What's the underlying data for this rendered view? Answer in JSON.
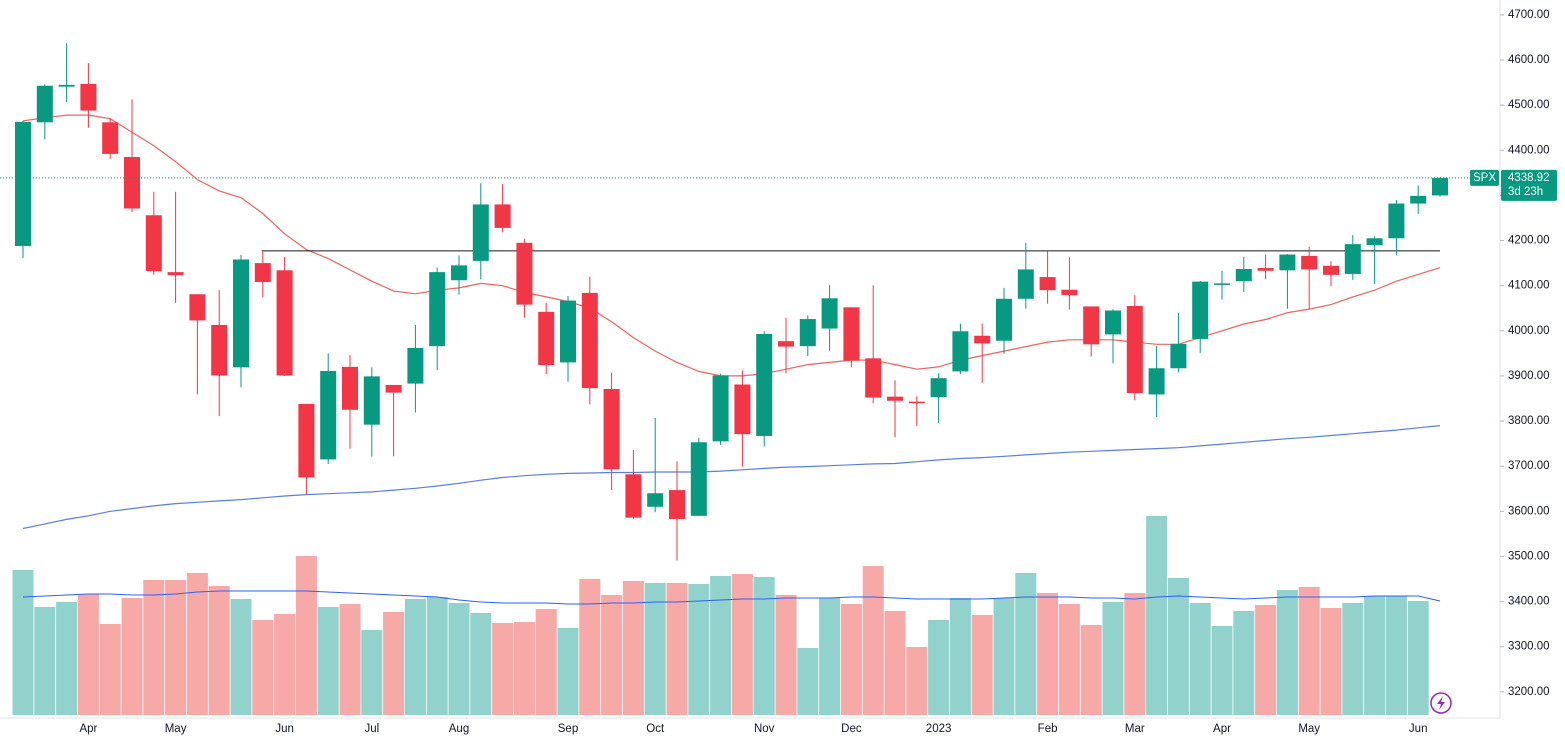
{
  "chart_data": {
    "type": "candlestick",
    "symbol": "SPX",
    "countdown": "3d 23h",
    "categories": [
      null,
      null,
      null,
      "Apr",
      null,
      null,
      null,
      "May",
      null,
      null,
      null,
      null,
      "Jun",
      null,
      null,
      null,
      "Jul",
      null,
      null,
      null,
      "Aug",
      null,
      null,
      null,
      null,
      "Sep",
      null,
      null,
      null,
      "Oct",
      null,
      null,
      null,
      null,
      "Nov",
      null,
      null,
      null,
      "Dec",
      null,
      null,
      null,
      "2023",
      null,
      null,
      null,
      null,
      "Feb",
      null,
      null,
      null,
      "Mar",
      null,
      null,
      null,
      "Apr",
      null,
      null,
      null,
      "May",
      null,
      null,
      null,
      null,
      "Jun",
      null
    ],
    "open": [
      4188,
      4462,
      4541,
      4547,
      4462,
      4385,
      4256,
      4130,
      4081,
      4013,
      3919,
      4150,
      4134,
      3838,
      3715,
      3920,
      3792,
      3880,
      3883,
      3966,
      4112,
      4155,
      4280,
      4195,
      4042,
      3930,
      4084,
      3871,
      3682,
      3610,
      3647,
      3590,
      3755,
      3881,
      3767,
      3977,
      3966,
      4005,
      4052,
      3939,
      3854,
      3843,
      3853,
      3910,
      3989,
      3978,
      4071,
      4119,
      4091,
      4054,
      3992,
      4055,
      3859,
      3917,
      3982,
      4102,
      4110,
      4139,
      4134,
      4166,
      4144,
      4126,
      4190,
      4205,
      4282,
      4300
    ],
    "high": [
      4465,
      4546,
      4637,
      4593,
      4471,
      4513,
      4308,
      4308,
      4081,
      4090,
      4168,
      4177,
      4164,
      3838,
      3950,
      3946,
      3919,
      3880,
      4013,
      4140,
      4167,
      4327,
      4325,
      4204,
      4062,
      4077,
      4120,
      3907,
      3736,
      3807,
      3711,
      3763,
      3905,
      3912,
      3999,
      4029,
      4034,
      4101,
      4052,
      4101,
      3890,
      3855,
      3906,
      4016,
      4016,
      4095,
      4195,
      4176,
      4163,
      4054,
      4048,
      4079,
      3966,
      4040,
      4110,
      4133,
      4164,
      4169,
      4170,
      4186,
      4154,
      4212,
      4209,
      4290,
      4322,
      4339
    ],
    "low": [
      4161,
      4424,
      4507,
      4450,
      4381,
      4263,
      4124,
      4062,
      3859,
      3811,
      3875,
      4074,
      3900,
      3637,
      3705,
      3739,
      3721,
      3722,
      3819,
      3913,
      4080,
      4114,
      4218,
      4029,
      3904,
      3887,
      3837,
      3647,
      3584,
      3598,
      3491,
      3590,
      3747,
      3699,
      3744,
      3906,
      3944,
      3956,
      3919,
      3839,
      3764,
      3789,
      3795,
      3904,
      3885,
      3949,
      4049,
      4060,
      4047,
      3943,
      3928,
      3846,
      3809,
      3908,
      3951,
      4069,
      4086,
      4114,
      4049,
      4048,
      4099,
      4113,
      4104,
      4167,
      4259,
      4297
    ],
    "close": [
      4463,
      4543,
      4545,
      4488,
      4392,
      4271,
      4132,
      4123,
      4023,
      3901,
      4158,
      4108,
      3901,
      3675,
      3911,
      3825,
      3899,
      3863,
      3962,
      4130,
      4145,
      4280,
      4228,
      4058,
      3924,
      4067,
      3873,
      3693,
      3586,
      3640,
      3583,
      3753,
      3901,
      3771,
      3993,
      3965,
      4026,
      4072,
      3934,
      3852,
      3845,
      3840,
      3895,
      3999,
      3972,
      4071,
      4136,
      4090,
      4079,
      3970,
      4045,
      3862,
      3917,
      3971,
      4109,
      4105,
      4137,
      4133,
      4169,
      4136,
      4124,
      4192,
      4205,
      4282,
      4299,
      4338.92
    ],
    "volume": [
      14.5,
      10.8,
      11.3,
      12.1,
      9.1,
      11.7,
      13.5,
      13.5,
      14.2,
      12.9,
      11.6,
      9.5,
      10.1,
      15.9,
      10.8,
      11.1,
      8.5,
      10.3,
      11.6,
      11.8,
      11.2,
      10.2,
      9.2,
      9.3,
      10.6,
      8.7,
      13.6,
      12.0,
      13.4,
      13.2,
      13.2,
      13.1,
      13.9,
      14.1,
      13.8,
      12.0,
      6.7,
      11.7,
      11.1,
      14.9,
      10.4,
      6.8,
      9.5,
      11.7,
      10.0,
      11.7,
      14.2,
      12.2,
      11.1,
      9.0,
      11.3,
      12.2,
      19.9,
      13.7,
      11.2,
      8.9,
      10.4,
      11.0,
      12.5,
      12.8,
      10.7,
      11.2,
      11.9,
      11.9,
      11.4,
      null
    ],
    "ma_fast": [
      4465,
      4472,
      4478,
      4478,
      4470,
      4440,
      4410,
      4375,
      4335,
      4310,
      4295,
      4260,
      4215,
      4180,
      4160,
      4135,
      4110,
      4088,
      4082,
      4090,
      4095,
      4105,
      4100,
      4085,
      4075,
      4065,
      4050,
      4020,
      3985,
      3955,
      3930,
      3910,
      3900,
      3900,
      3905,
      3915,
      3925,
      3930,
      3935,
      3935,
      3925,
      3915,
      3920,
      3935,
      3945,
      3955,
      3965,
      3975,
      3980,
      3980,
      3980,
      3975,
      3970,
      3970,
      3985,
      4000,
      4015,
      4025,
      4040,
      4048,
      4058,
      4075,
      4090,
      4110,
      4125,
      4140
    ],
    "ma_slow": [
      3562,
      3572,
      3582,
      3590,
      3600,
      3606,
      3612,
      3617,
      3620,
      3623,
      3626,
      3630,
      3634,
      3637,
      3639,
      3641,
      3643,
      3647,
      3651,
      3656,
      3662,
      3669,
      3675,
      3679,
      3682,
      3684,
      3685,
      3686,
      3686,
      3687,
      3687,
      3687,
      3689,
      3692,
      3695,
      3698,
      3699,
      3701,
      3703,
      3705,
      3706,
      3710,
      3714,
      3717,
      3719,
      3722,
      3725,
      3728,
      3731,
      3733,
      3735,
      3737,
      3739,
      3741,
      3745,
      3749,
      3753,
      3757,
      3761,
      3764,
      3768,
      3772,
      3776,
      3780,
      3785,
      3790
    ],
    "volume_ma": [
      11.8,
      11.9,
      12.0,
      12.1,
      12.1,
      12.0,
      12.0,
      12.1,
      12.3,
      12.4,
      12.4,
      12.4,
      12.4,
      12.4,
      12.3,
      12.2,
      12.1,
      12.0,
      11.9,
      11.8,
      11.5,
      11.3,
      11.2,
      11.2,
      11.2,
      11.1,
      11.1,
      11.2,
      11.2,
      11.3,
      11.3,
      11.4,
      11.5,
      11.6,
      11.6,
      11.7,
      11.7,
      11.7,
      11.8,
      11.8,
      11.7,
      11.6,
      11.6,
      11.6,
      11.6,
      11.7,
      11.8,
      11.8,
      11.8,
      11.7,
      11.7,
      11.6,
      11.8,
      11.9,
      11.8,
      11.7,
      11.6,
      11.7,
      11.8,
      11.8,
      11.8,
      11.8,
      11.9,
      11.9,
      11.9,
      11.4
    ],
    "level": 4177,
    "level_start": 11,
    "ylim": [
      3142,
      4733
    ],
    "yticks": [
      {
        "value": 4700,
        "label": "4700.00"
      },
      {
        "value": 4600,
        "label": "4600.00"
      },
      {
        "value": 4500,
        "label": "4500.00"
      },
      {
        "value": 4400,
        "label": "4400.00"
      },
      {
        "value": 4300,
        "label": "4300.00"
      },
      {
        "value": 4200,
        "label": "4200.00"
      },
      {
        "value": 4100,
        "label": "4100.00"
      },
      {
        "value": 4000,
        "label": "4000.00"
      },
      {
        "value": 3900,
        "label": "3900.00"
      },
      {
        "value": 3800,
        "label": "3800.00"
      },
      {
        "value": 3700,
        "label": "3700.00"
      },
      {
        "value": 3600,
        "label": "3600.00"
      },
      {
        "value": 3500,
        "label": "3500.00"
      },
      {
        "value": 3400,
        "label": "3400.00"
      },
      {
        "value": 3300,
        "label": "3300.00"
      },
      {
        "value": 3200,
        "label": "3200.00"
      }
    ],
    "volume_ylim": [
      0,
      21.5
    ],
    "up_color": "#089981",
    "down_color": "#f23645",
    "volume_up_color": "#92d2cc",
    "volume_down_color": "#f7a9a7",
    "ma_fast_color": "#f0625d",
    "ma_slow_color": "#5b7fe0",
    "volume_ma_color": "#2962ff"
  }
}
